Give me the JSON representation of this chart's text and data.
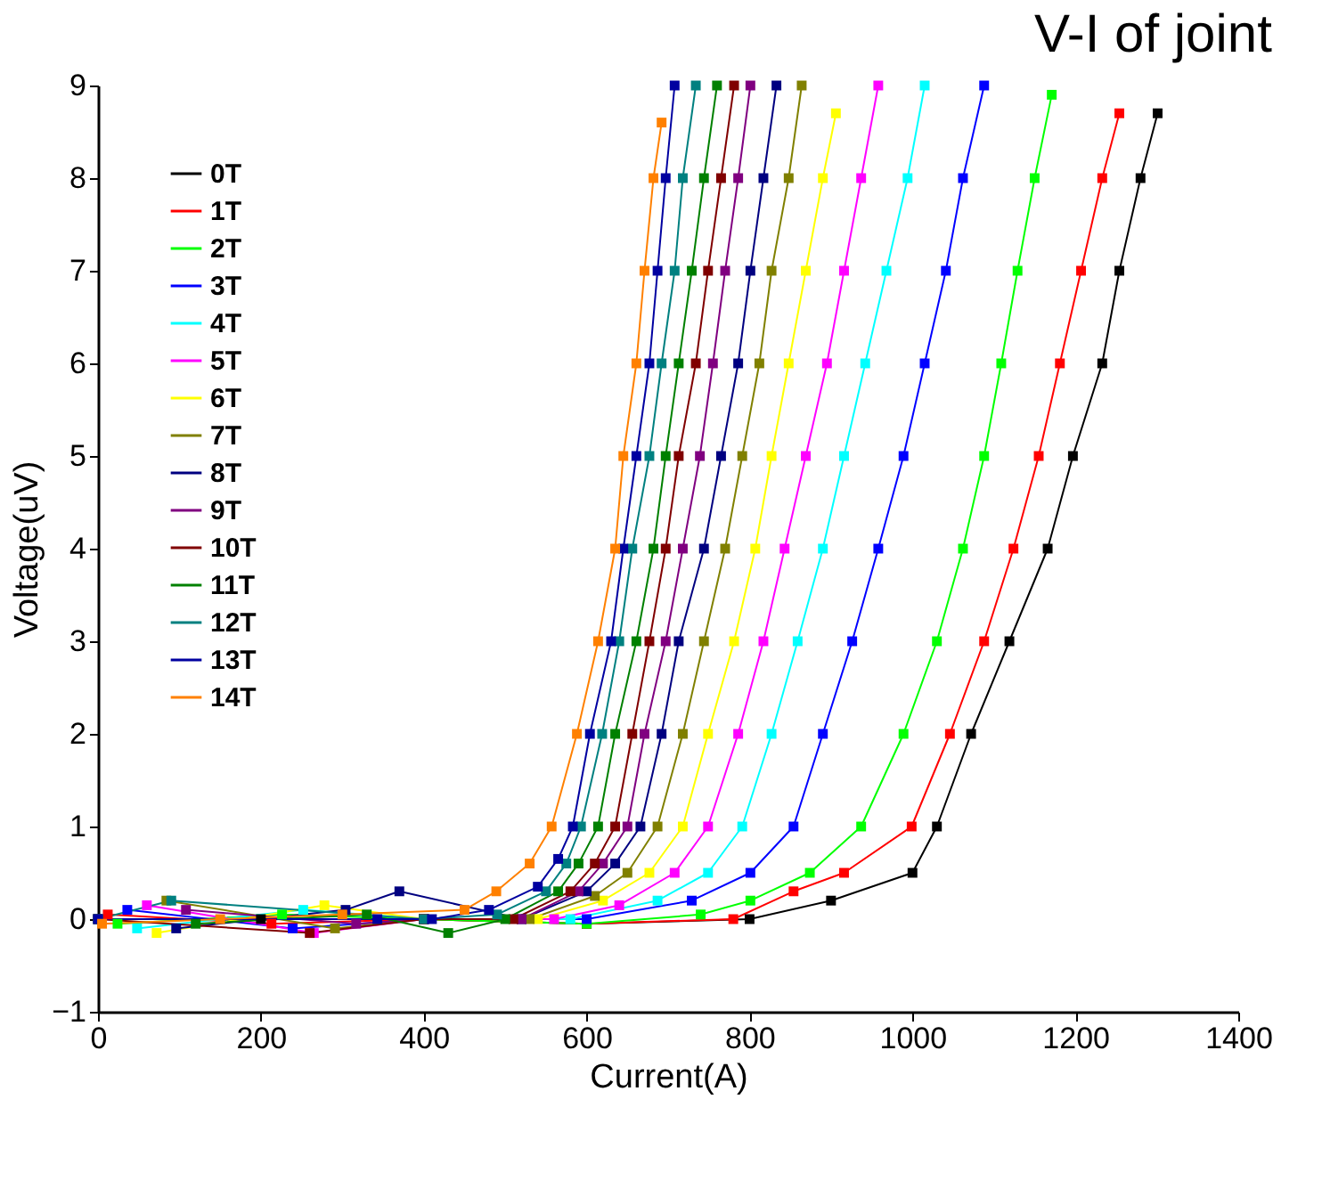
{
  "chart_data": {
    "type": "line",
    "title": "V-I of joint",
    "xlabel": "Current(A)",
    "ylabel": "Voltage(uV)",
    "xlim": [
      0,
      1400
    ],
    "ylim": [
      -1,
      9
    ],
    "xticks": [
      0,
      200,
      400,
      600,
      800,
      1000,
      1200,
      1400
    ],
    "yticks": [
      -1,
      0,
      1,
      2,
      3,
      4,
      5,
      6,
      7,
      8,
      9
    ],
    "grid": false,
    "legend": "top left",
    "marker": "square",
    "line_style": "solid",
    "series": [
      {
        "name": "0T",
        "color": "#000000",
        "x": [
          0,
          200,
          400,
          600,
          800,
          900,
          1000,
          1030,
          1072,
          1119,
          1166,
          1197,
          1233,
          1254,
          1280,
          1301
        ],
        "values": [
          0,
          0,
          0,
          -0.05,
          0,
          0.2,
          0.5,
          1,
          2,
          3,
          4,
          5,
          6,
          7,
          8,
          8.7
        ]
      },
      {
        "name": "1T",
        "color": "#ff0000",
        "x": [
          12,
          213,
          400,
          600,
          780,
          854,
          916,
          999,
          1046,
          1088,
          1124,
          1155,
          1181,
          1207,
          1233,
          1254
        ],
        "values": [
          0.05,
          -0.05,
          0,
          -0.05,
          0,
          0.3,
          0.5,
          1,
          2,
          3,
          4,
          5,
          6,
          7,
          8,
          8.7
        ]
      },
      {
        "name": "2T",
        "color": "#00ff00",
        "x": [
          24,
          226,
          400,
          600,
          740,
          801,
          874,
          937,
          989,
          1030,
          1062,
          1088,
          1109,
          1129,
          1150,
          1171
        ],
        "values": [
          -0.05,
          0.05,
          0,
          -0.05,
          0.05,
          0.2,
          0.5,
          1,
          2,
          3,
          4,
          5,
          6,
          7,
          8,
          8.9
        ]
      },
      {
        "name": "3T",
        "color": "#0000ff",
        "x": [
          36,
          239,
          400,
          600,
          729,
          801,
          854,
          890,
          926,
          958,
          989,
          1015,
          1041,
          1062,
          1088
        ],
        "values": [
          0.1,
          -0.1,
          0,
          0,
          0.2,
          0.5,
          1,
          2,
          3,
          4,
          5,
          6,
          7,
          8,
          9
        ]
      },
      {
        "name": "4T",
        "color": "#00ffff",
        "x": [
          48,
          252,
          400,
          580,
          687,
          749,
          791,
          827,
          859,
          890,
          916,
          942,
          968,
          994,
          1015
        ],
        "values": [
          -0.1,
          0.1,
          0,
          0,
          0.2,
          0.5,
          1,
          2,
          3,
          4,
          5,
          6,
          7,
          8,
          9
        ]
      },
      {
        "name": "5T",
        "color": "#ff00ff",
        "x": [
          60,
          265,
          400,
          560,
          640,
          708,
          749,
          786,
          817,
          843,
          869,
          895,
          916,
          937,
          958
        ],
        "values": [
          0.15,
          -0.15,
          0,
          0,
          0.15,
          0.5,
          1,
          2,
          3,
          4,
          5,
          6,
          7,
          8,
          9
        ]
      },
      {
        "name": "6T",
        "color": "#ffff00",
        "x": [
          72,
          278,
          400,
          540,
          620,
          677,
          718,
          749,
          781,
          807,
          827,
          848,
          869,
          890,
          906
        ],
        "values": [
          -0.15,
          0.15,
          0,
          0,
          0.2,
          0.5,
          1,
          2,
          3,
          4,
          5,
          6,
          7,
          8,
          8.7
        ]
      },
      {
        "name": "7T",
        "color": "#808000",
        "x": [
          84,
          291,
          400,
          530,
          610,
          650,
          687,
          718,
          744,
          770,
          791,
          812,
          827,
          848,
          864
        ],
        "values": [
          0.2,
          -0.1,
          0,
          0,
          0.25,
          0.5,
          1,
          2,
          3,
          4,
          5,
          6,
          7,
          8,
          9
        ]
      },
      {
        "name": "8T",
        "color": "#000080",
        "x": [
          96,
          304,
          370,
          520,
          600,
          635,
          666,
          692,
          713,
          744,
          765,
          786,
          801,
          817,
          833
        ],
        "values": [
          -0.1,
          0.1,
          0.3,
          0,
          0.3,
          0.6,
          1,
          2,
          3,
          4,
          5,
          6,
          7,
          8,
          9
        ]
      },
      {
        "name": "9T",
        "color": "#800080",
        "x": [
          108,
          317,
          400,
          520,
          590,
          620,
          650,
          671,
          697,
          718,
          739,
          755,
          770,
          786,
          801
        ],
        "values": [
          0.1,
          -0.05,
          0,
          0,
          0.3,
          0.6,
          1,
          2,
          3,
          4,
          5,
          6,
          7,
          8,
          9
        ]
      },
      {
        "name": "10T",
        "color": "#800000",
        "x": [
          0,
          260,
          400,
          510,
          580,
          610,
          635,
          656,
          677,
          697,
          713,
          734,
          749,
          765,
          781
        ],
        "values": [
          0,
          -0.15,
          0,
          0,
          0.3,
          0.6,
          1,
          2,
          3,
          4,
          5,
          6,
          7,
          8,
          9
        ]
      },
      {
        "name": "11T",
        "color": "#008000",
        "x": [
          120,
          330,
          430,
          500,
          565,
          590,
          614,
          635,
          661,
          682,
          697,
          713,
          729,
          744,
          760
        ],
        "values": [
          -0.05,
          0.05,
          -0.15,
          0,
          0.3,
          0.6,
          1,
          2,
          3,
          4,
          5,
          6,
          7,
          8,
          9
        ]
      },
      {
        "name": "12T",
        "color": "#008080",
        "x": [
          0,
          90,
          400,
          490,
          550,
          575,
          593,
          619,
          640,
          656,
          677,
          692,
          708,
          718,
          734
        ],
        "values": [
          0,
          0.2,
          0,
          0.05,
          0.3,
          0.6,
          1,
          2,
          3,
          4,
          5,
          6,
          7,
          8,
          9
        ]
      },
      {
        "name": "13T",
        "color": "#0000a0",
        "x": [
          0,
          343,
          410,
          480,
          540,
          565,
          583,
          604,
          630,
          645,
          661,
          677,
          687,
          697,
          708
        ],
        "values": [
          0,
          0,
          0,
          0.1,
          0.35,
          0.65,
          1,
          2,
          3,
          4,
          5,
          6,
          7,
          8,
          9
        ]
      },
      {
        "name": "14T",
        "color": "#ff8000",
        "x": [
          5,
          150,
          300,
          450,
          489,
          530,
          557,
          588,
          614,
          635,
          645,
          661,
          671,
          682,
          692
        ],
        "values": [
          -0.05,
          0,
          0.05,
          0.1,
          0.3,
          0.6,
          1,
          2,
          3,
          4,
          5,
          6,
          7,
          8,
          8.6
        ]
      }
    ]
  }
}
